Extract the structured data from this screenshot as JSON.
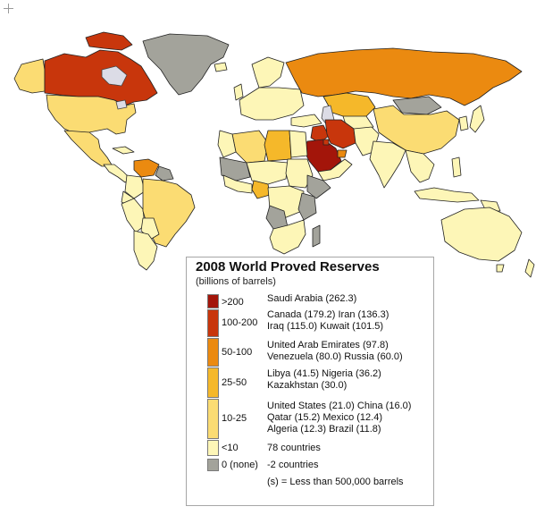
{
  "legend": {
    "title": "2008 World Proved Reserves",
    "subtitle": "(billions of barrels)",
    "note": "(s) = Less than 500,000 barrels",
    "classes": [
      {
        "range": ">200",
        "color": "#a3150a",
        "lines": [
          "Saudi Arabia (262.3)"
        ]
      },
      {
        "range": "100-200",
        "color": "#c8360c",
        "lines": [
          "Canada (179.2) Iran (136.3)",
          "Iraq (115.0) Kuwait (101.5)"
        ]
      },
      {
        "range": "50-100",
        "color": "#eb8a10",
        "lines": [
          "United Arab Emirates (97.8)",
          "Venezuela (80.0) Russia (60.0)"
        ]
      },
      {
        "range": "25-50",
        "color": "#f5b82a",
        "lines": [
          "Libya (41.5) Nigeria (36.2)",
          "Kazakhstan (30.0)"
        ]
      },
      {
        "range": "10-25",
        "color": "#fbdc73",
        "lines": [
          "United States (21.0) China (16.0)",
          "Qatar (15.2) Mexico (12.4)",
          "Algeria (12.3) Brazil (11.8)"
        ]
      },
      {
        "range": "<10",
        "color": "#fdf6b7",
        "lines": [
          "78 countries"
        ]
      },
      {
        "range": "0 (none)",
        "color": "#a3a39b",
        "lines": [
          "-2 countries"
        ]
      }
    ]
  },
  "colors": {
    "ocean": "#ffffff",
    "border": "#222222",
    "lake": "#dcdce6",
    "no_data": "#a3a39b"
  }
}
